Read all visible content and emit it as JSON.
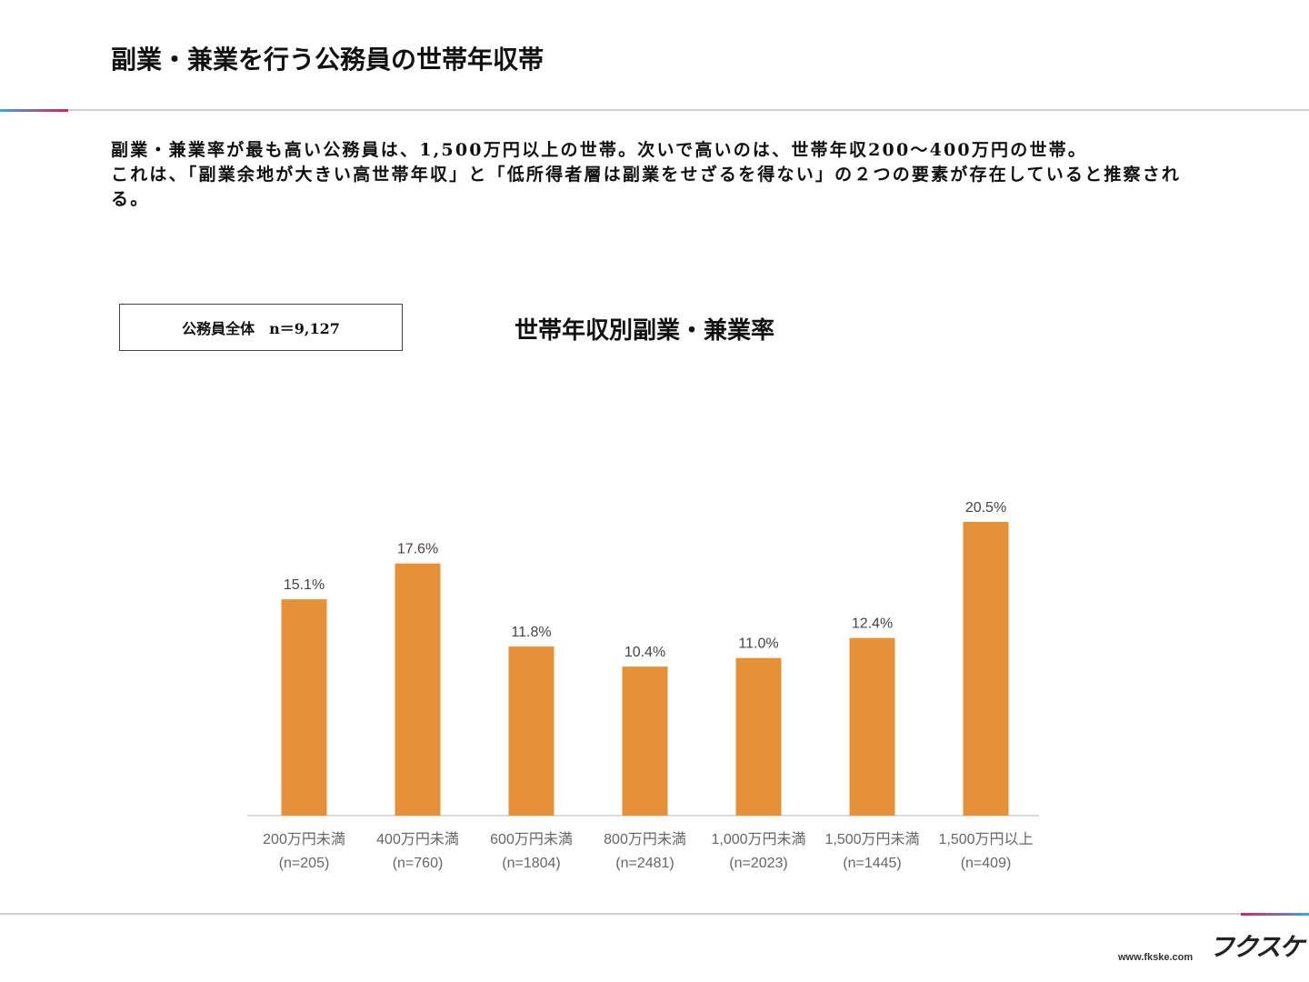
{
  "header": {
    "title": "副業・兼業を行う公務員の世帯年収帯"
  },
  "body": {
    "paragraphs": [
      "副業・兼業率が最も高い公務員は、1,500万円以上の世帯。次いで高いのは、世帯年収200～400万円の世帯。",
      "これは、「副業余地が大きい高世帯年収」と「低所得者層は副業をせざるを得ない」の２つの要素が存在していると推察される。"
    ]
  },
  "sample_box": "公務員全体　n＝9,127",
  "chart_data": {
    "type": "bar",
    "title": "世帯年収別副業・兼業率",
    "categories": [
      "200万円未満",
      "400万円未満",
      "600万円未満",
      "800万円未満",
      "1,000万円未満",
      "1,500万円未満",
      "1,500万円以上"
    ],
    "sample_sizes": [
      "(n=205)",
      "(n=760)",
      "(n=1804)",
      "(n=2481)",
      "(n=2023)",
      "(n=1445)",
      "(n=409)"
    ],
    "values": [
      15.1,
      17.6,
      11.8,
      10.4,
      11.0,
      12.4,
      20.5
    ],
    "value_labels": [
      "15.1%",
      "17.6%",
      "11.8%",
      "10.4%",
      "11.0%",
      "12.4%",
      "20.5%"
    ],
    "color": "#e69138"
  },
  "footer": {
    "url": "www.fkske.com",
    "logo": "フクスケ"
  }
}
